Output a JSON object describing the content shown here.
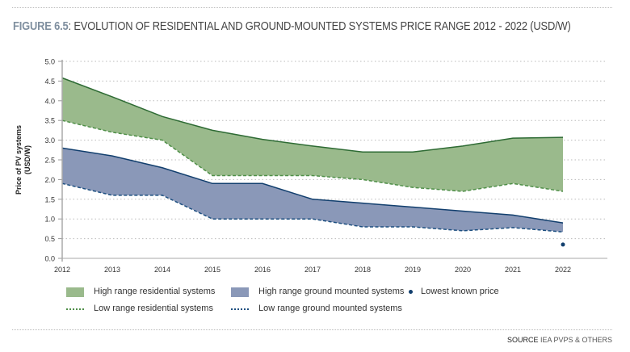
{
  "header": {
    "figure_label": "FIGURE 6.5",
    "title": ": EVOLUTION OF RESIDENTIAL AND GROUND-MOUNTED SYSTEMS PRICE RANGE 2012 - 2022 (USD/W)"
  },
  "source": {
    "label": "SOURCE",
    "text": "IEA PVPS & OTHERS"
  },
  "chart_data": {
    "type": "area",
    "title": "",
    "ylabel": "Price of PV systems (USD/W)",
    "xlabel": "",
    "ylim": [
      0,
      5
    ],
    "yticks": [
      "0.0",
      "0.5",
      "1.0",
      "1.5",
      "2.0",
      "2.5",
      "3.0",
      "3.5",
      "4.0",
      "4.5",
      "5.0"
    ],
    "categories": [
      "2012",
      "2013",
      "2014",
      "2015",
      "2016",
      "2017",
      "2018",
      "2019",
      "2020",
      "2021",
      "2022"
    ],
    "grid": "horizontal dotted",
    "legend_placement": "bottom",
    "series": [
      {
        "name": "High range residential systems",
        "values": [
          4.58,
          4.1,
          3.6,
          3.25,
          3.02,
          2.85,
          2.7,
          2.7,
          2.85,
          3.05,
          3.07
        ],
        "color": "#2e6b34",
        "fill": "#9aba8c"
      },
      {
        "name": "Low range residential systems",
        "values": [
          3.5,
          3.2,
          3.0,
          2.1,
          2.1,
          2.1,
          2.0,
          1.8,
          1.7,
          1.9,
          1.7
        ],
        "color": "#4f8f48",
        "dashed": true
      },
      {
        "name": "High range ground mounted systems",
        "values": [
          2.8,
          2.6,
          2.3,
          1.9,
          1.9,
          1.5,
          1.4,
          1.3,
          1.2,
          1.1,
          0.9
        ],
        "color": "#123f6e",
        "fill": "#8a98b8"
      },
      {
        "name": "Low range ground mounted systems",
        "values": [
          1.9,
          1.6,
          1.6,
          1.0,
          1.0,
          1.0,
          0.8,
          0.8,
          0.7,
          0.78,
          0.67
        ],
        "color": "#1d4f80",
        "dashed": true
      }
    ],
    "points": [
      {
        "name": "Lowest known price",
        "x": "2022",
        "y": 0.35,
        "color": "#123f6e"
      }
    ]
  }
}
